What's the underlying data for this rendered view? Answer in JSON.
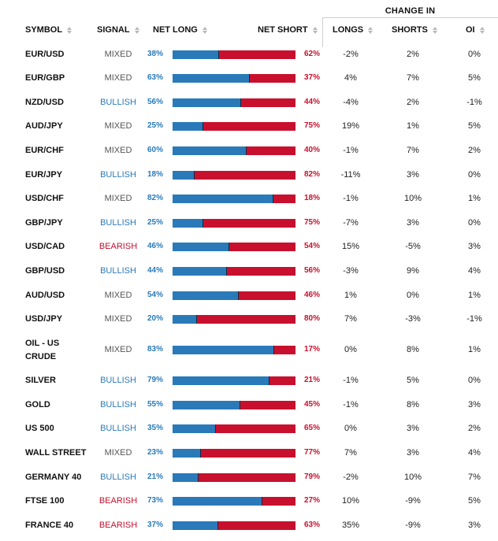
{
  "header": {
    "change_in": "CHANGE IN",
    "symbol": "SYMBOL",
    "signal": "SIGNAL",
    "net_long": "NET LONG",
    "net_short": "NET SHORT",
    "longs": "LONGS",
    "shorts": "SHORTS",
    "oi": "OI"
  },
  "colors": {
    "long": "#2a7ab9",
    "short": "#c8102e",
    "bullish": "#2a7ab9",
    "bearish": "#c8102e",
    "mixed": "#555555"
  },
  "rows": [
    {
      "symbol": "EUR/USD",
      "signal": "MIXED",
      "net_long": "38%",
      "net_short": "62%",
      "long_frac": 0.38,
      "longs": "-2%",
      "shorts": "2%",
      "oi": "0%"
    },
    {
      "symbol": "EUR/GBP",
      "signal": "MIXED",
      "net_long": "63%",
      "net_short": "37%",
      "long_frac": 0.63,
      "longs": "4%",
      "shorts": "7%",
      "oi": "5%"
    },
    {
      "symbol": "NZD/USD",
      "signal": "BULLISH",
      "net_long": "56%",
      "net_short": "44%",
      "long_frac": 0.56,
      "longs": "-4%",
      "shorts": "2%",
      "oi": "-1%"
    },
    {
      "symbol": "AUD/JPY",
      "signal": "MIXED",
      "net_long": "25%",
      "net_short": "75%",
      "long_frac": 0.25,
      "longs": "19%",
      "shorts": "1%",
      "oi": "5%"
    },
    {
      "symbol": "EUR/CHF",
      "signal": "MIXED",
      "net_long": "60%",
      "net_short": "40%",
      "long_frac": 0.6,
      "longs": "-1%",
      "shorts": "7%",
      "oi": "2%"
    },
    {
      "symbol": "EUR/JPY",
      "signal": "BULLISH",
      "net_long": "18%",
      "net_short": "82%",
      "long_frac": 0.18,
      "longs": "-11%",
      "shorts": "3%",
      "oi": "0%"
    },
    {
      "symbol": "USD/CHF",
      "signal": "MIXED",
      "net_long": "82%",
      "net_short": "18%",
      "long_frac": 0.82,
      "longs": "-1%",
      "shorts": "10%",
      "oi": "1%"
    },
    {
      "symbol": "GBP/JPY",
      "signal": "BULLISH",
      "net_long": "25%",
      "net_short": "75%",
      "long_frac": 0.25,
      "longs": "-7%",
      "shorts": "3%",
      "oi": "0%"
    },
    {
      "symbol": "USD/CAD",
      "signal": "BEARISH",
      "net_long": "46%",
      "net_short": "54%",
      "long_frac": 0.46,
      "longs": "15%",
      "shorts": "-5%",
      "oi": "3%"
    },
    {
      "symbol": "GBP/USD",
      "signal": "BULLISH",
      "net_long": "44%",
      "net_short": "56%",
      "long_frac": 0.44,
      "longs": "-3%",
      "shorts": "9%",
      "oi": "4%"
    },
    {
      "symbol": "AUD/USD",
      "signal": "MIXED",
      "net_long": "54%",
      "net_short": "46%",
      "long_frac": 0.54,
      "longs": "1%",
      "shorts": "0%",
      "oi": "1%"
    },
    {
      "symbol": "USD/JPY",
      "signal": "MIXED",
      "net_long": "20%",
      "net_short": "80%",
      "long_frac": 0.2,
      "longs": "7%",
      "shorts": "-3%",
      "oi": "-1%"
    },
    {
      "symbol": "OIL - US CRUDE",
      "symbol_line1": "OIL - US",
      "symbol_line2": "CRUDE",
      "signal": "MIXED",
      "net_long": "83%",
      "net_short": "17%",
      "long_frac": 0.83,
      "longs": "0%",
      "shorts": "8%",
      "oi": "1%"
    },
    {
      "symbol": "SILVER",
      "signal": "BULLISH",
      "net_long": "79%",
      "net_short": "21%",
      "long_frac": 0.79,
      "longs": "-1%",
      "shorts": "5%",
      "oi": "0%"
    },
    {
      "symbol": "GOLD",
      "signal": "BULLISH",
      "net_long": "55%",
      "net_short": "45%",
      "long_frac": 0.55,
      "longs": "-1%",
      "shorts": "8%",
      "oi": "3%"
    },
    {
      "symbol": "US 500",
      "signal": "BULLISH",
      "net_long": "35%",
      "net_short": "65%",
      "long_frac": 0.35,
      "longs": "0%",
      "shorts": "3%",
      "oi": "2%"
    },
    {
      "symbol": "WALL STREET",
      "signal": "MIXED",
      "net_long": "23%",
      "net_short": "77%",
      "long_frac": 0.23,
      "longs": "7%",
      "shorts": "3%",
      "oi": "4%"
    },
    {
      "symbol": "GERMANY 40",
      "signal": "BULLISH",
      "net_long": "21%",
      "net_short": "79%",
      "long_frac": 0.21,
      "longs": "-2%",
      "shorts": "10%",
      "oi": "7%"
    },
    {
      "symbol": "FTSE 100",
      "signal": "BEARISH",
      "net_long": "73%",
      "net_short": "27%",
      "long_frac": 0.73,
      "longs": "10%",
      "shorts": "-9%",
      "oi": "5%"
    },
    {
      "symbol": "FRANCE 40",
      "signal": "BEARISH",
      "net_long": "37%",
      "net_short": "63%",
      "long_frac": 0.37,
      "longs": "35%",
      "shorts": "-9%",
      "oi": "3%"
    }
  ]
}
